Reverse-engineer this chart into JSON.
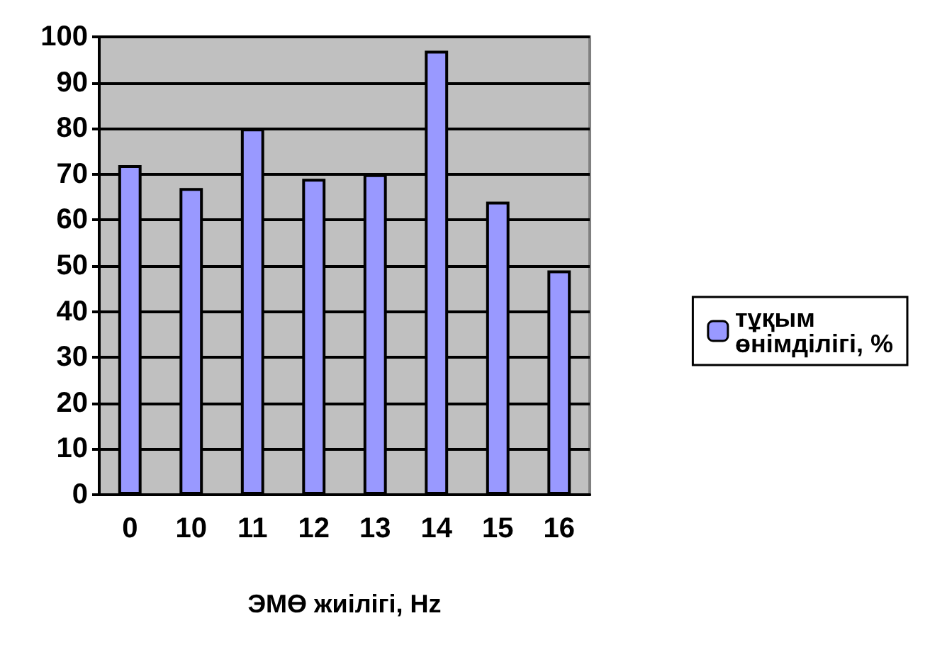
{
  "chart_data": {
    "type": "bar",
    "xlabel": "ЭМӨ жиілігі, Hz",
    "categories": [
      "0",
      "10",
      "11",
      "12",
      "13",
      "14",
      "15",
      "16"
    ],
    "series": [
      {
        "name": "тұқым\nөнімділігі, %",
        "color": "#9999ff",
        "values": [
          72,
          67,
          80,
          69,
          70,
          97,
          64,
          49
        ]
      }
    ],
    "ylim": [
      0,
      100
    ],
    "yticks": [
      0,
      10,
      20,
      30,
      40,
      50,
      60,
      70,
      80,
      90,
      100
    ],
    "grid": "y",
    "legend": "right"
  }
}
